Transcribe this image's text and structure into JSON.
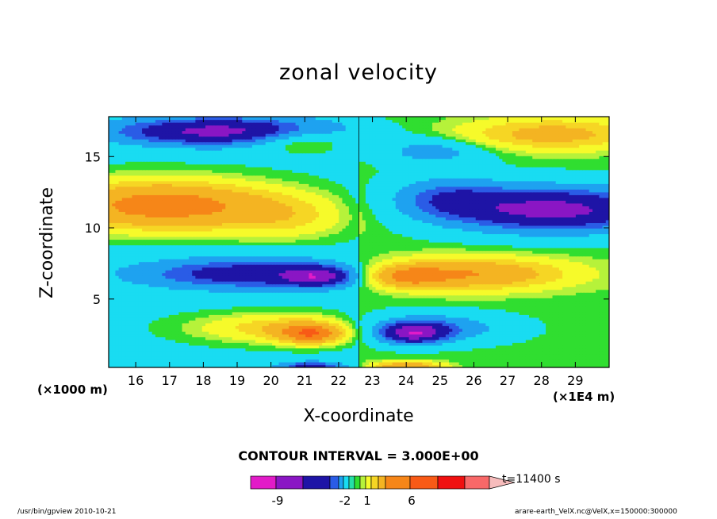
{
  "chart_data": {
    "type": "heatmap",
    "title": "zonal velocity",
    "xlabel": "X-coordinate",
    "ylabel": "Z-coordinate",
    "x_unit": "(×1000 m)",
    "x_unit_right": "(×1E4 m)",
    "xlim": [
      15.2,
      30.0
    ],
    "ylim": [
      0.2,
      17.8
    ],
    "x_ticks": [
      16,
      17,
      18,
      19,
      20,
      21,
      22,
      23,
      24,
      25,
      26,
      27,
      28,
      29
    ],
    "y_ticks": [
      5,
      10,
      15
    ],
    "contour_interval": "CONTOUR INTERVAL = 3.000E+00",
    "time_label": "t=11400 s",
    "colorbar": {
      "colors": [
        "#e21bc8",
        "#8a16c4",
        "#1e14a6",
        "#2a5ce6",
        "#1ea2f0",
        "#19dcf2",
        "#25e0a8",
        "#30de30",
        "#b6f23a",
        "#f6fa2a",
        "#f6d624",
        "#f4b422",
        "#f68618",
        "#f85a16",
        "#f01010",
        "#f86868",
        "#f7bcbc"
      ],
      "tick_labels": [
        "-9",
        "-2",
        "1",
        "6"
      ]
    },
    "level_colors": {
      "-12": "#c3c3c3",
      "-10": "#e21bc8",
      "-8": "#8a16c4",
      "-6": "#1e14a6",
      "-4": "#2a5ce6",
      "-3": "#1ea2f0",
      "-1.5": "#19dcf2",
      "0": "#30de30",
      "0.5": "#b6f23a",
      "1": "#f6fa2a",
      "2": "#f6d624",
      "3": "#f4b422",
      "5": "#f68618",
      "7": "#f85a16",
      "9": "#f01010"
    },
    "features": [
      {
        "name": "upper-left negative jet",
        "x": 18.5,
        "z": 16.6,
        "value": -6.5
      },
      {
        "name": "upper-right positive jet",
        "x": 28.0,
        "z": 16.6,
        "value": 3.5
      },
      {
        "name": "left mid-level positive band",
        "x": 17.0,
        "z": 11.5,
        "value": 6.5
      },
      {
        "name": "right mid-level negative band",
        "x": 28.3,
        "z": 11.2,
        "value": -7.0
      },
      {
        "name": "left low-level negative core",
        "x": 21.4,
        "z": 6.6,
        "value": -9.5
      },
      {
        "name": "right low-level positive core",
        "x": 24.0,
        "z": 6.6,
        "value": 8.5
      },
      {
        "name": "left surface positive core",
        "x": 21.2,
        "z": 2.6,
        "value": 8.5
      },
      {
        "name": "right surface negative core",
        "x": 24.2,
        "z": 2.6,
        "value": -9.0
      }
    ]
  },
  "footer": {
    "left": "/usr/bin/gpview  2010-10-21",
    "right": "arare-earth_VelX.nc@VelX,x=150000:300000"
  }
}
